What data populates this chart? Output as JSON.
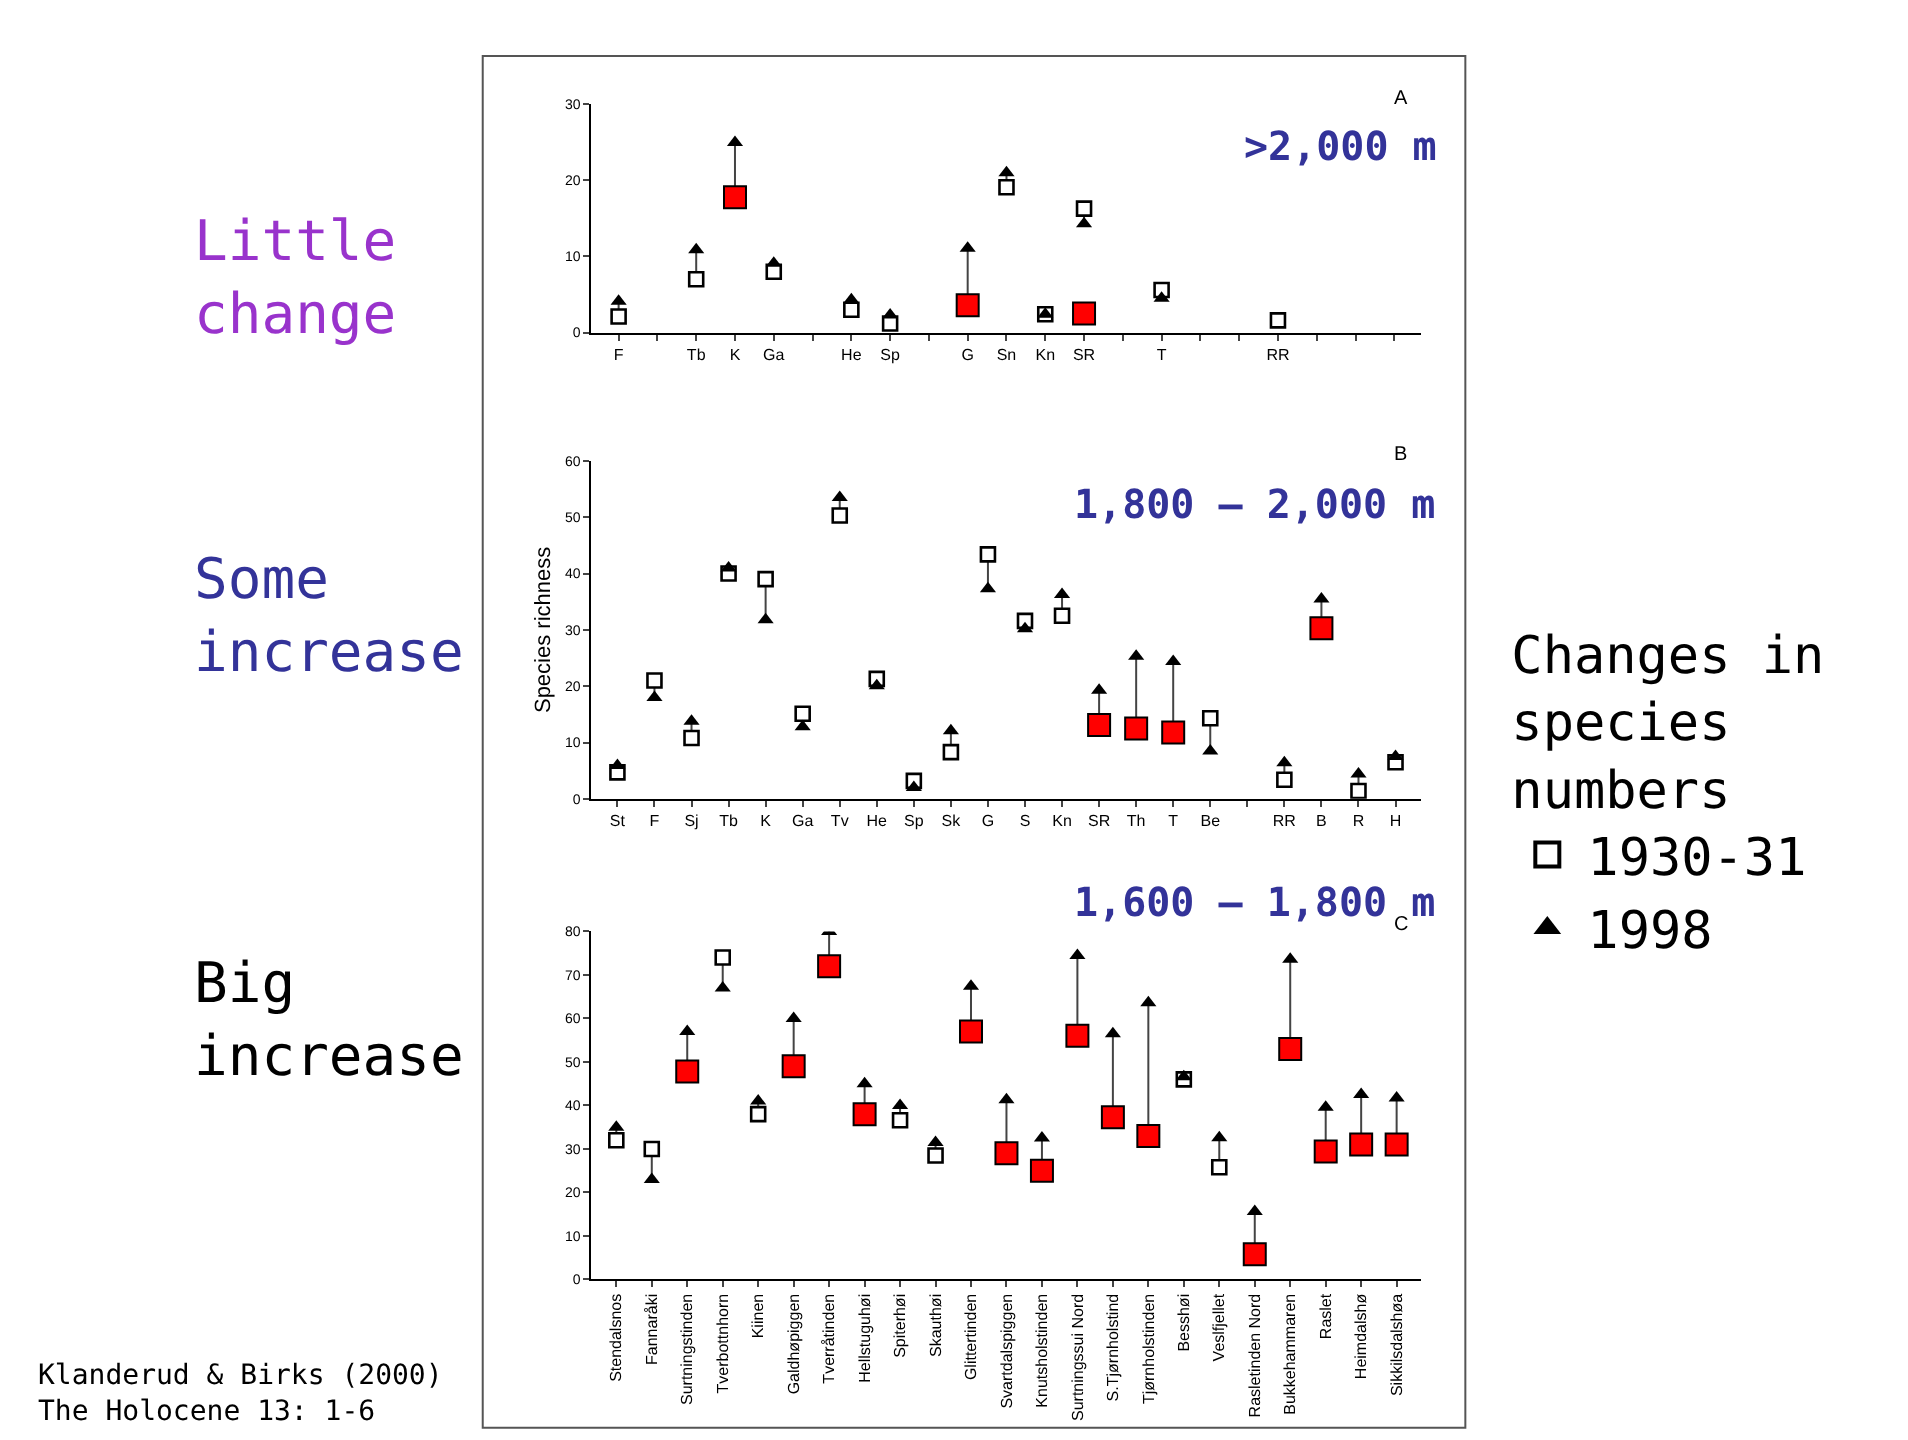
{
  "chart_data": [
    {
      "type": "scatter",
      "title": ">2,000 m",
      "annotations": [
        "A",
        "Little change"
      ],
      "categories": [
        "F",
        null,
        "Tb",
        "K",
        "Ga",
        null,
        "He",
        "Sp",
        null,
        "G",
        "Sn",
        "Kn",
        "SR",
        null,
        "T",
        null,
        null,
        "RR",
        null,
        null,
        null
      ],
      "ylim": [
        0,
        30
      ],
      "yticks": [
        0,
        10,
        20,
        30
      ],
      "legend": false,
      "series": [
        {
          "color": "#000000",
          "marker": "square",
          "values": [
            2.1,
            null,
            7,
            null,
            8,
            null,
            3,
            1.2,
            null,
            null,
            19.1,
            2.4,
            16.3,
            null,
            5.6,
            null,
            null,
            1.6,
            null,
            null,
            null
          ]
        },
        {
          "color": "#000000",
          "marker": "triangle",
          "values": [
            4.1,
            null,
            10.9,
            25,
            9.1,
            null,
            4.3,
            2.3,
            null,
            11.1,
            21,
            2.4,
            14.3,
            null,
            4.5,
            null,
            null,
            null,
            null,
            null,
            null
          ]
        },
        {
          "color": "#ff0000",
          "marker": "square",
          "values": [
            null,
            null,
            null,
            17.8,
            null,
            null,
            null,
            null,
            null,
            3.6,
            null,
            null,
            2.5,
            null,
            null,
            null,
            null,
            null,
            null,
            null,
            null
          ]
        }
      ]
    },
    {
      "type": "scatter",
      "title": "1,800 – 2,000 m",
      "ylabel": "Species richness",
      "annotations": [
        "B",
        "Some increase"
      ],
      "legend_title": "Changes in species numbers",
      "legend": "right",
      "categories": [
        "St",
        "F",
        "Sj",
        "Tb",
        "K",
        "Ga",
        "Tv",
        "He",
        "Sp",
        "Sk",
        "G",
        "S",
        "Kn",
        "SR",
        "Th",
        "T",
        "Be",
        null,
        "RR",
        "B",
        "R",
        "H"
      ],
      "ylim": [
        0,
        60
      ],
      "yticks": [
        0,
        10,
        20,
        30,
        40,
        50,
        60
      ],
      "series": [
        {
          "name": "1930-31",
          "color": "#000000",
          "marker": "square",
          "values": [
            4.7,
            21,
            10.8,
            40,
            39,
            15.1,
            50.3,
            21.3,
            3.2,
            8.3,
            43.4,
            31.6,
            32.5,
            null,
            null,
            null,
            14.3,
            null,
            3.4,
            null,
            1.4,
            6.5
          ]
        },
        {
          "name": "1998",
          "color": "#000000",
          "marker": "triangle",
          "values": [
            5.9,
            18,
            13.8,
            41,
            31.8,
            12.8,
            53.5,
            20.1,
            2,
            12.1,
            37.3,
            30.2,
            36.3,
            19.3,
            25.3,
            24.4,
            8.5,
            null,
            6.4,
            35.5,
            4.4,
            7.5
          ]
        },
        {
          "color": "#ff0000",
          "marker": "square",
          "values": [
            null,
            null,
            null,
            null,
            null,
            null,
            null,
            null,
            null,
            null,
            null,
            null,
            null,
            13.1,
            12.5,
            11.8,
            null,
            null,
            null,
            30.3,
            null,
            null
          ]
        }
      ]
    },
    {
      "type": "scatter",
      "title": "1,600 – 1,800 m",
      "annotations": [
        "C",
        "Big increase",
        "Klanderud & Birks (2000)\nThe Holocene 13: 1-6"
      ],
      "categories": [
        "Stendalsnos",
        "Fannaråki",
        "Surtningstinden",
        "Tverbottnhorn",
        "Kiinen",
        "Galdhøpiggen",
        "Tverråtinden",
        "Hellstuguhøi",
        "Spiterhøi",
        "Skauthøi",
        "Glittertinden",
        "Svartdalspiggen",
        "Knutsholstinden",
        "Surtningssui Nord",
        "S.Tjørnholstind",
        "Tjørnholstinden",
        "Besshøi",
        "Veslfjellet",
        "Rasletinden Nord",
        "Bukkehammaren",
        "Raslet",
        "Heimdalshø",
        "Sikkilsdalshøa"
      ],
      "ylim": [
        0,
        80
      ],
      "yticks": [
        0,
        10,
        20,
        30,
        40,
        50,
        60,
        70,
        80
      ],
      "legend": false,
      "series": [
        {
          "color": "#000000",
          "marker": "square",
          "values": [
            32,
            30,
            null,
            74,
            38,
            null,
            null,
            null,
            36.6,
            28.5,
            null,
            null,
            null,
            null,
            null,
            null,
            46,
            25.8,
            null,
            null,
            null,
            null,
            null
          ]
        },
        {
          "color": "#000000",
          "marker": "triangle",
          "values": [
            35,
            23,
            57,
            67,
            41,
            60,
            80,
            45,
            40,
            31.5,
            67.4,
            41.3,
            32.5,
            74.5,
            56.5,
            63.6,
            46.6,
            32.6,
            15.6,
            73.6,
            39.6,
            42.5,
            41.7
          ]
        },
        {
          "color": "#ff0000",
          "marker": "square",
          "values": [
            null,
            null,
            47.8,
            null,
            null,
            49,
            72,
            38,
            null,
            null,
            57,
            29,
            25,
            56,
            37.3,
            33,
            null,
            null,
            5.8,
            53,
            29.4,
            31,
            31
          ]
        }
      ]
    }
  ]
}
